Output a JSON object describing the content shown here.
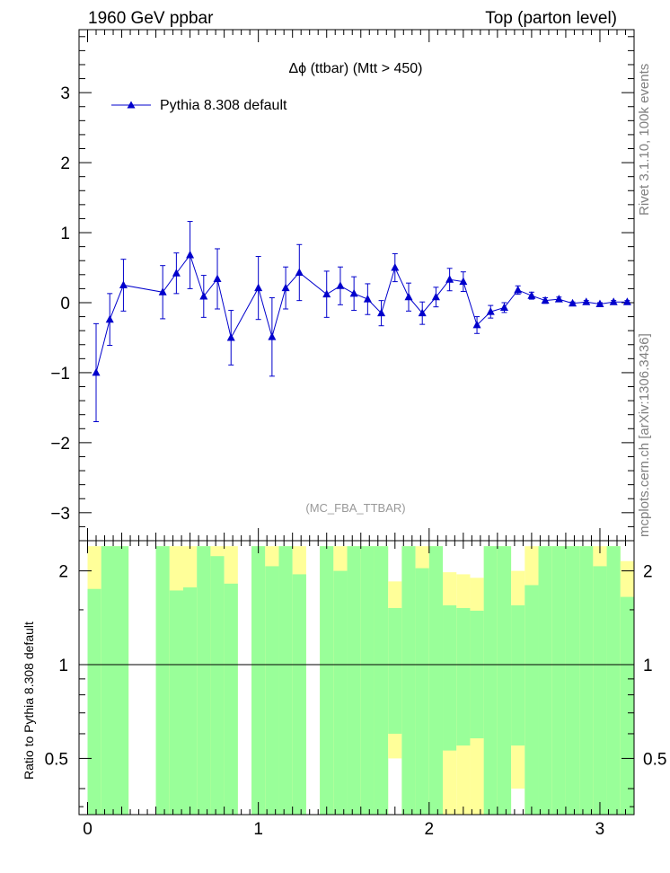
{
  "header": {
    "left": "1960 GeV ppbar",
    "right": "Top (parton level)"
  },
  "side_labels": {
    "rivet": "Rivet 3.1.10,  100k events",
    "mcplots": "mcplots.cern.ch [arXiv:1306.3436]"
  },
  "chart_data": {
    "type": "scatter",
    "title": "Δϕ (ttbar) (Mtt > 450)",
    "analysis": "(MC_FBA_TTBAR)",
    "legend": "Pythia 8.308 default",
    "legend_position": "top-left",
    "colors": {
      "series": "#0000cc",
      "green": "#99ff99",
      "yellow": "#ffff99"
    },
    "main_panel": {
      "xlim": [
        -0.05,
        3.2
      ],
      "ylim": [
        -3.4,
        3.9
      ],
      "yticks": [
        -3,
        -2,
        -1,
        0,
        1,
        2,
        3
      ],
      "ytick_labels": [
        "−3",
        "−2",
        "−1",
        "0",
        "1",
        "2",
        "3"
      ],
      "series": [
        {
          "name": "Pythia 8.308 default",
          "points": [
            {
              "x": 0.05,
              "y": -1.0,
              "err": 0.7
            },
            {
              "x": 0.13,
              "y": -0.24,
              "err": 0.37
            },
            {
              "x": 0.21,
              "y": 0.25,
              "err": 0.37
            },
            {
              "x": 0.44,
              "y": 0.15,
              "err": 0.38
            },
            {
              "x": 0.52,
              "y": 0.42,
              "err": 0.29
            },
            {
              "x": 0.6,
              "y": 0.68,
              "err": 0.48
            },
            {
              "x": 0.68,
              "y": 0.09,
              "err": 0.3
            },
            {
              "x": 0.76,
              "y": 0.34,
              "err": 0.43
            },
            {
              "x": 0.84,
              "y": -0.5,
              "err": 0.39
            },
            {
              "x": 1.0,
              "y": 0.21,
              "err": 0.45
            },
            {
              "x": 1.08,
              "y": -0.49,
              "err": 0.56
            },
            {
              "x": 1.16,
              "y": 0.21,
              "err": 0.3
            },
            {
              "x": 1.24,
              "y": 0.43,
              "err": 0.4
            },
            {
              "x": 1.4,
              "y": 0.12,
              "err": 0.33
            },
            {
              "x": 1.48,
              "y": 0.24,
              "err": 0.27
            },
            {
              "x": 1.56,
              "y": 0.13,
              "err": 0.24
            },
            {
              "x": 1.64,
              "y": 0.05,
              "err": 0.22
            },
            {
              "x": 1.72,
              "y": -0.15,
              "err": 0.18
            },
            {
              "x": 1.8,
              "y": 0.5,
              "err": 0.2
            },
            {
              "x": 1.88,
              "y": 0.08,
              "err": 0.2
            },
            {
              "x": 1.96,
              "y": -0.15,
              "err": 0.16
            },
            {
              "x": 2.04,
              "y": 0.08,
              "err": 0.14
            },
            {
              "x": 2.12,
              "y": 0.33,
              "err": 0.16
            },
            {
              "x": 2.2,
              "y": 0.3,
              "err": 0.14
            },
            {
              "x": 2.28,
              "y": -0.32,
              "err": 0.12
            },
            {
              "x": 2.36,
              "y": -0.13,
              "err": 0.09
            },
            {
              "x": 2.44,
              "y": -0.07,
              "err": 0.07
            },
            {
              "x": 2.52,
              "y": 0.18,
              "err": 0.06
            },
            {
              "x": 2.6,
              "y": 0.1,
              "err": 0.05
            },
            {
              "x": 2.68,
              "y": 0.03,
              "err": 0.04
            },
            {
              "x": 2.76,
              "y": 0.05,
              "err": 0.03
            },
            {
              "x": 2.84,
              "y": -0.01,
              "err": 0.02
            },
            {
              "x": 2.92,
              "y": 0.01,
              "err": 0.02
            },
            {
              "x": 3.0,
              "y": -0.02,
              "err": 0.02
            },
            {
              "x": 3.08,
              "y": 0.01,
              "err": 0.02
            },
            {
              "x": 3.16,
              "y": 0.01,
              "err": 0.02
            }
          ]
        }
      ]
    },
    "ratio_panel": {
      "ylabel": "Ratio to Pythia 8.308 default",
      "xlim": [
        -0.05,
        3.2
      ],
      "ylim": [
        0.33,
        2.5
      ],
      "log_scale": true,
      "reference_line": 1,
      "yticks": [
        0.5,
        1,
        2
      ],
      "ytick_labels": [
        "0.5",
        "1",
        "2"
      ],
      "xticks": [
        0,
        1,
        2,
        3
      ],
      "xtick_labels": [
        "0",
        "1",
        "2",
        "3"
      ],
      "bands": [
        {
          "x0": 0.0,
          "x1": 0.08,
          "green": [
            0,
            1.75
          ],
          "yellow": [
            0,
            2.4
          ]
        },
        {
          "x0": 0.08,
          "x1": 0.24,
          "green": [
            0,
            2.4
          ],
          "yellow": [
            0,
            2.4
          ]
        },
        {
          "x0": 0.4,
          "x1": 0.48,
          "green": [
            0,
            2.4
          ],
          "yellow": [
            0,
            2.4
          ]
        },
        {
          "x0": 0.48,
          "x1": 0.56,
          "green": [
            0,
            1.73
          ],
          "yellow": [
            0,
            2.4
          ]
        },
        {
          "x0": 0.56,
          "x1": 0.64,
          "green": [
            0,
            1.77
          ],
          "yellow": [
            0,
            2.4
          ]
        },
        {
          "x0": 0.64,
          "x1": 0.72,
          "green": [
            0,
            2.4
          ],
          "yellow": [
            0,
            2.4
          ]
        },
        {
          "x0": 0.72,
          "x1": 0.8,
          "green": [
            0,
            2.23
          ],
          "yellow": [
            0,
            2.4
          ]
        },
        {
          "x0": 0.8,
          "x1": 0.88,
          "green": [
            0,
            1.82
          ],
          "yellow": [
            0,
            2.4
          ]
        },
        {
          "x0": 0.96,
          "x1": 1.04,
          "green": [
            0,
            2.4
          ],
          "yellow": [
            0,
            2.4
          ]
        },
        {
          "x0": 1.04,
          "x1": 1.12,
          "green": [
            0,
            2.07
          ],
          "yellow": [
            0,
            2.4
          ]
        },
        {
          "x0": 1.12,
          "x1": 1.2,
          "green": [
            0,
            2.4
          ],
          "yellow": [
            0,
            2.4
          ]
        },
        {
          "x0": 1.2,
          "x1": 1.28,
          "green": [
            0,
            1.95
          ],
          "yellow": [
            0,
            2.4
          ]
        },
        {
          "x0": 1.36,
          "x1": 1.44,
          "green": [
            0,
            2.4
          ],
          "yellow": [
            0,
            2.4
          ]
        },
        {
          "x0": 1.44,
          "x1": 1.52,
          "green": [
            0,
            2.0
          ],
          "yellow": [
            0,
            2.4
          ]
        },
        {
          "x0": 1.52,
          "x1": 1.6,
          "green": [
            0,
            2.4
          ],
          "yellow": [
            0,
            2.4
          ]
        },
        {
          "x0": 1.6,
          "x1": 1.68,
          "green": [
            0,
            2.4
          ],
          "yellow": [
            0,
            2.4
          ]
        },
        {
          "x0": 1.68,
          "x1": 1.76,
          "green": [
            0,
            2.4
          ],
          "yellow": [
            0,
            2.4
          ]
        },
        {
          "x0": 1.76,
          "x1": 1.84,
          "green": [
            0.6,
            1.52
          ],
          "yellow": [
            0.5,
            1.85
          ]
        },
        {
          "x0": 1.84,
          "x1": 1.92,
          "green": [
            0,
            2.4
          ],
          "yellow": [
            0,
            2.4
          ]
        },
        {
          "x0": 1.92,
          "x1": 2.0,
          "green": [
            0,
            2.04
          ],
          "yellow": [
            0,
            2.4
          ]
        },
        {
          "x0": 2.0,
          "x1": 2.08,
          "green": [
            0,
            2.4
          ],
          "yellow": [
            0,
            2.4
          ]
        },
        {
          "x0": 2.08,
          "x1": 2.16,
          "green": [
            0.53,
            1.55
          ],
          "yellow": [
            0,
            1.98
          ]
        },
        {
          "x0": 2.16,
          "x1": 2.24,
          "green": [
            0.55,
            1.52
          ],
          "yellow": [
            0,
            1.95
          ]
        },
        {
          "x0": 2.24,
          "x1": 2.32,
          "green": [
            0.58,
            1.49
          ],
          "yellow": [
            0,
            1.9
          ]
        },
        {
          "x0": 2.32,
          "x1": 2.4,
          "green": [
            0,
            2.4
          ],
          "yellow": [
            0,
            2.4
          ]
        },
        {
          "x0": 2.4,
          "x1": 2.48,
          "green": [
            0,
            2.4
          ],
          "yellow": [
            0,
            2.4
          ]
        },
        {
          "x0": 2.48,
          "x1": 2.56,
          "green": [
            0.55,
            1.55
          ],
          "yellow": [
            0.4,
            2.0
          ]
        },
        {
          "x0": 2.56,
          "x1": 2.64,
          "green": [
            0,
            1.8
          ],
          "yellow": [
            0,
            2.4
          ]
        },
        {
          "x0": 2.64,
          "x1": 2.72,
          "green": [
            0,
            2.4
          ],
          "yellow": [
            0,
            2.4
          ]
        },
        {
          "x0": 2.72,
          "x1": 2.8,
          "green": [
            0,
            2.4
          ],
          "yellow": [
            0,
            2.4
          ]
        },
        {
          "x0": 2.8,
          "x1": 2.88,
          "green": [
            0,
            2.4
          ],
          "yellow": [
            0,
            2.4
          ]
        },
        {
          "x0": 2.88,
          "x1": 2.96,
          "green": [
            0,
            2.4
          ],
          "yellow": [
            0,
            2.4
          ]
        },
        {
          "x0": 2.96,
          "x1": 3.04,
          "green": [
            0,
            2.07
          ],
          "yellow": [
            0,
            2.4
          ]
        },
        {
          "x0": 3.04,
          "x1": 3.12,
          "green": [
            0,
            2.4
          ],
          "yellow": [
            0,
            2.4
          ]
        },
        {
          "x0": 3.12,
          "x1": 3.2,
          "green": [
            0,
            1.65
          ],
          "yellow": [
            0,
            2.15
          ]
        }
      ]
    }
  }
}
